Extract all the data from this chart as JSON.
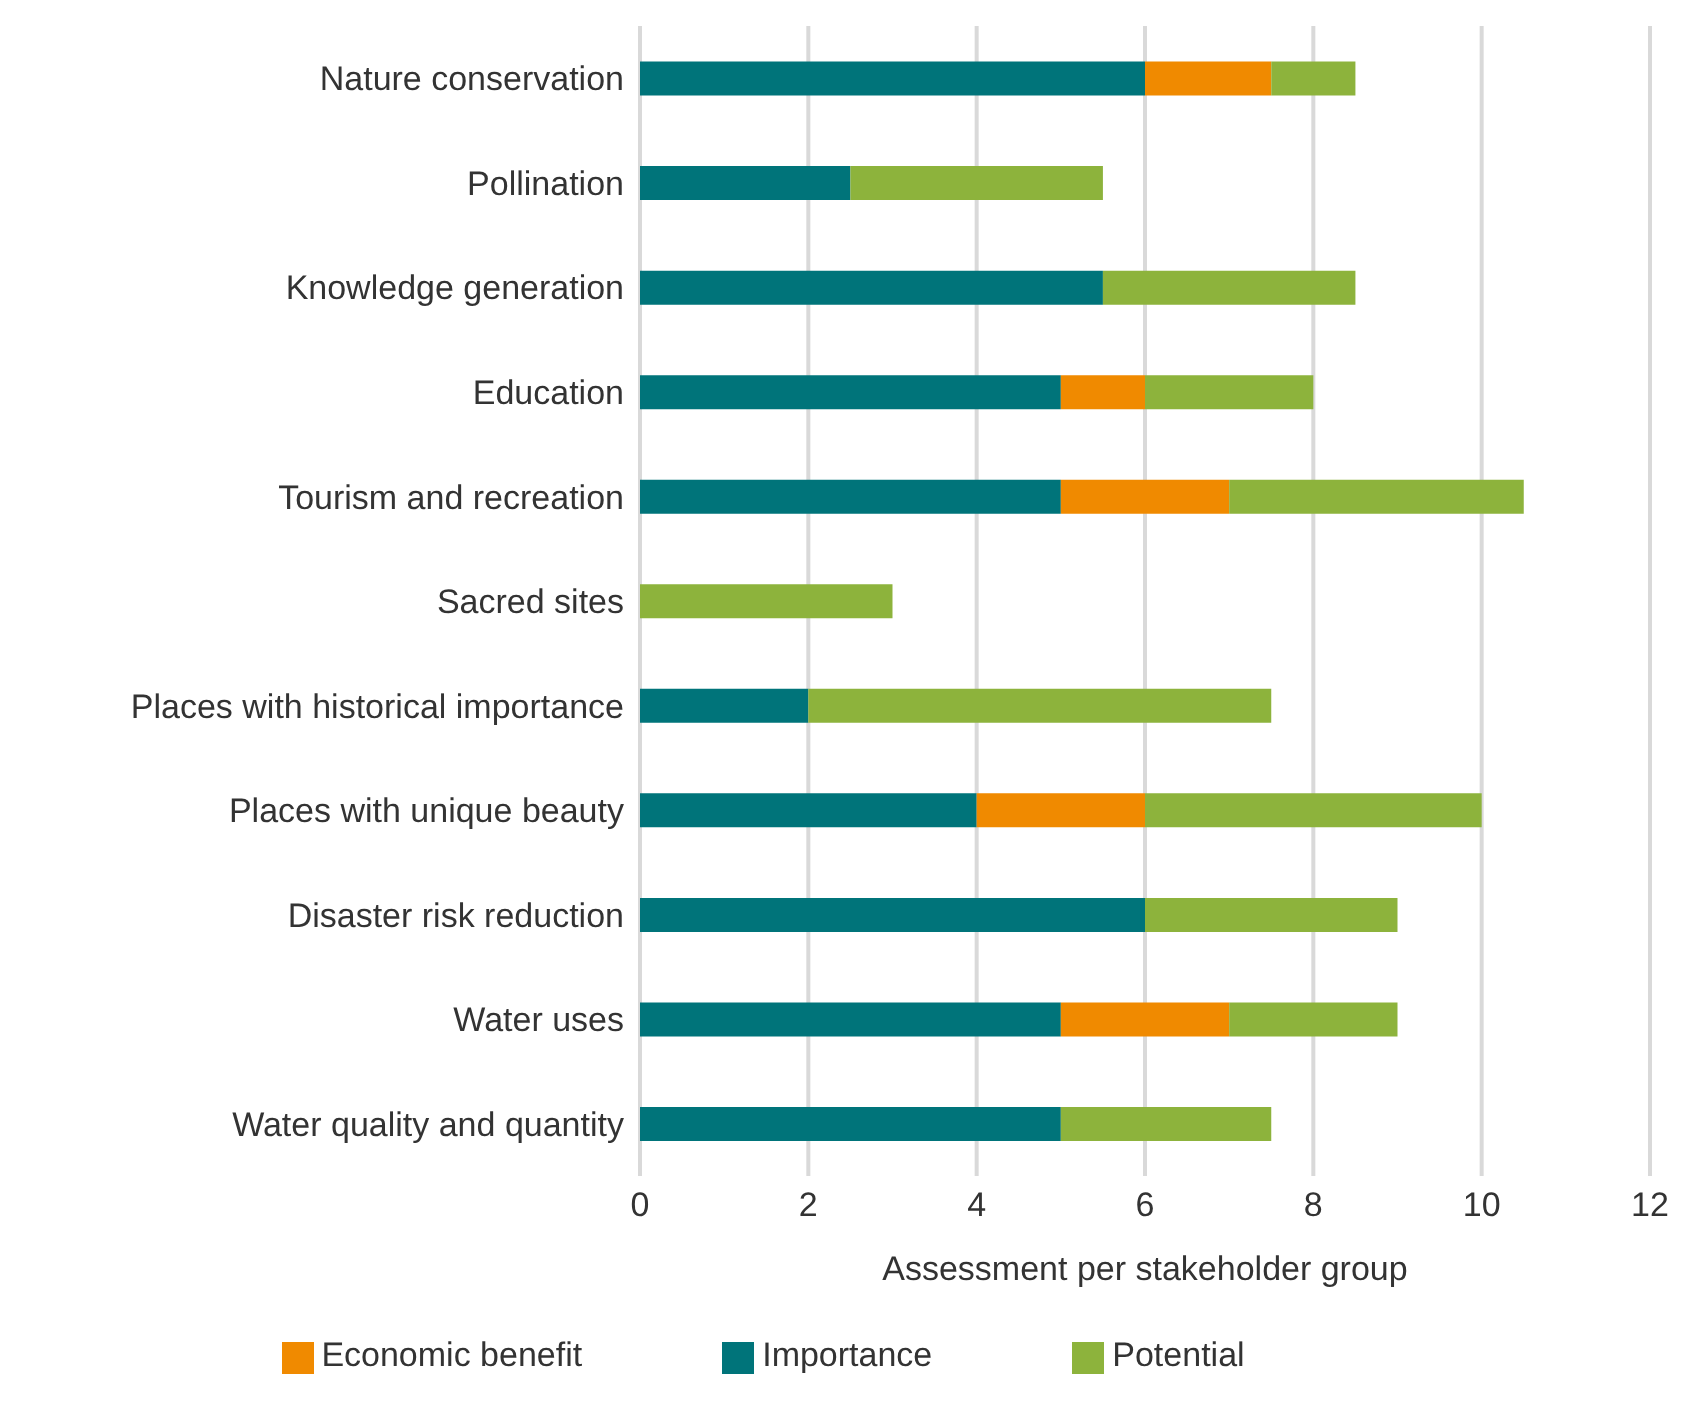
{
  "chart_data": {
    "type": "bar",
    "orientation": "horizontal",
    "stacked": true,
    "xlabel": "Assessment per stakeholder group",
    "categories": [
      "Nature conservation",
      "Pollination",
      "Knowledge generation",
      "Education",
      "Tourism and recreation",
      "Sacred sites",
      "Places with historical importance",
      "Places with unique beauty",
      "Disaster risk reduction",
      "Water uses",
      "Water quality and quantity"
    ],
    "series": [
      {
        "name": "Importance",
        "color": "#00747a",
        "values": [
          6,
          2.5,
          5.5,
          5,
          5,
          0,
          2,
          4,
          6,
          5,
          5
        ]
      },
      {
        "name": "Economic benefit",
        "color": "#f08a00",
        "values": [
          1.5,
          0,
          0,
          1,
          2,
          0,
          0,
          2,
          0,
          2,
          0
        ]
      },
      {
        "name": "Potential",
        "color": "#8db33c",
        "values": [
          1,
          3,
          3,
          2,
          3.5,
          3,
          5.5,
          4,
          3,
          2,
          2.5
        ]
      }
    ],
    "xlim": [
      0,
      12
    ],
    "xticks": [
      0,
      2,
      4,
      6,
      8,
      10,
      12
    ],
    "grid": "x",
    "legend": "bottom"
  }
}
